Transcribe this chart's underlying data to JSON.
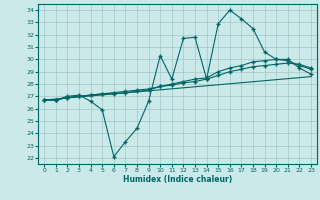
{
  "xlabel": "Humidex (Indice chaleur)",
  "ylabel": "",
  "background_color": "#cce9e9",
  "grid_color": "#a8cccc",
  "line_color": "#006666",
  "xlim": [
    -0.5,
    23.5
  ],
  "ylim": [
    21.5,
    34.5
  ],
  "xticks": [
    0,
    1,
    2,
    3,
    4,
    5,
    6,
    7,
    8,
    9,
    10,
    11,
    12,
    13,
    14,
    15,
    16,
    17,
    18,
    19,
    20,
    21,
    22,
    23
  ],
  "yticks": [
    22,
    23,
    24,
    25,
    26,
    27,
    28,
    29,
    30,
    31,
    32,
    33,
    34
  ],
  "line1": {
    "x": [
      0,
      1,
      2,
      3,
      4,
      5,
      6,
      7,
      8,
      9,
      10,
      11,
      12,
      13,
      14,
      15,
      16,
      17,
      18,
      19,
      20,
      21,
      22,
      23
    ],
    "y": [
      26.7,
      26.7,
      27.0,
      27.1,
      26.6,
      25.9,
      22.1,
      23.3,
      24.4,
      26.6,
      30.3,
      28.4,
      31.7,
      31.8,
      28.4,
      32.9,
      34.0,
      33.3,
      32.5,
      30.6,
      30.0,
      30.0,
      29.3,
      28.8
    ]
  },
  "line2": {
    "x": [
      0,
      1,
      2,
      3,
      4,
      5,
      6,
      7,
      8,
      9,
      10,
      11,
      12,
      13,
      14,
      15,
      16,
      17,
      18,
      19,
      20,
      21,
      22,
      23
    ],
    "y": [
      26.7,
      26.7,
      26.9,
      27.0,
      27.1,
      27.2,
      27.2,
      27.3,
      27.4,
      27.5,
      27.8,
      28.0,
      28.2,
      28.4,
      28.5,
      29.0,
      29.3,
      29.5,
      29.8,
      29.9,
      30.0,
      29.9,
      29.5,
      29.2
    ]
  },
  "line3": {
    "x": [
      0,
      1,
      2,
      3,
      4,
      5,
      6,
      7,
      8,
      9,
      10,
      11,
      12,
      13,
      14,
      15,
      16,
      17,
      18,
      19,
      20,
      21,
      22,
      23
    ],
    "y": [
      26.7,
      26.7,
      26.9,
      27.0,
      27.1,
      27.2,
      27.3,
      27.4,
      27.5,
      27.6,
      27.8,
      27.9,
      28.1,
      28.2,
      28.4,
      28.7,
      29.0,
      29.2,
      29.4,
      29.5,
      29.6,
      29.7,
      29.6,
      29.3
    ]
  },
  "line4": {
    "x": [
      0,
      23
    ],
    "y": [
      26.7,
      28.6
    ]
  }
}
